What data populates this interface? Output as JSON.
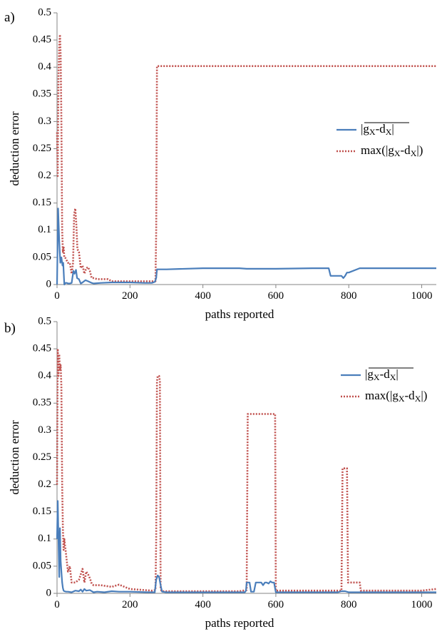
{
  "chart_data": [
    {
      "type": "line",
      "panel_label": "a)",
      "xlabel": "paths reported",
      "ylabel": "deduction error",
      "xlim": [
        0,
        1040
      ],
      "ylim": [
        0,
        0.5
      ],
      "xticks": [
        0,
        200,
        400,
        600,
        800,
        1000
      ],
      "yticks": [
        0,
        0.05,
        0.1,
        0.15,
        0.2,
        0.25,
        0.3,
        0.35,
        0.4,
        0.45,
        0.5
      ],
      "grid": false,
      "legend_placement": "right",
      "series": [
        {
          "name": "|gx-dx| (mean)",
          "color": "#4a7ebb",
          "style": "solid",
          "x": [
            0,
            3,
            6,
            9,
            12,
            15,
            17,
            20,
            23,
            27,
            30,
            35,
            40,
            45,
            48,
            52,
            55,
            60,
            65,
            70,
            78,
            85,
            95,
            100,
            120,
            150,
            200,
            240,
            260,
            268,
            270,
            272,
            274,
            300,
            400,
            500,
            520,
            600,
            700,
            745,
            750,
            752,
            780,
            785,
            790,
            795,
            800,
            830,
            900,
            1040
          ],
          "y": [
            0.0,
            0.14,
            0.08,
            0.04,
            0.05,
            0.035,
            0.04,
            0.0,
            0.003,
            0.003,
            0.002,
            0.002,
            0.003,
            0.025,
            0.02,
            0.027,
            0.012,
            0.01,
            0.002,
            0.004,
            0.008,
            0.006,
            0.003,
            0.002,
            0.003,
            0.004,
            0.004,
            0.003,
            0.003,
            0.005,
            0.008,
            0.012,
            0.028,
            0.028,
            0.03,
            0.03,
            0.029,
            0.029,
            0.03,
            0.03,
            0.016,
            0.016,
            0.016,
            0.012,
            0.016,
            0.022,
            0.022,
            0.03,
            0.03,
            0.03
          ]
        },
        {
          "name": "max(|gx-dx|)",
          "color": "#c0504d",
          "style": "dotted",
          "x": [
            0,
            2,
            4,
            6,
            8,
            10,
            12,
            14,
            16,
            18,
            20,
            22,
            26,
            30,
            35,
            40,
            44,
            47,
            50,
            53,
            56,
            60,
            65,
            70,
            75,
            80,
            85,
            90,
            95,
            100,
            110,
            140,
            150,
            270,
            272,
            274,
            400,
            600,
            800,
            1040
          ],
          "y": [
            0.28,
            0.2,
            0.38,
            0.44,
            0.46,
            0.42,
            0.3,
            0.1,
            0.06,
            0.07,
            0.05,
            0.05,
            0.045,
            0.04,
            0.04,
            0.02,
            0.04,
            0.13,
            0.14,
            0.11,
            0.065,
            0.06,
            0.03,
            0.035,
            0.02,
            0.03,
            0.032,
            0.025,
            0.012,
            0.012,
            0.01,
            0.01,
            0.006,
            0.006,
            0.1,
            0.402,
            0.402,
            0.402,
            0.402,
            0.402
          ]
        }
      ]
    },
    {
      "type": "line",
      "panel_label": "b)",
      "xlabel": "paths reported",
      "ylabel": "deduction error",
      "xlim": [
        0,
        1040
      ],
      "ylim": [
        0,
        0.5
      ],
      "xticks": [
        0,
        200,
        400,
        600,
        800,
        1000
      ],
      "yticks": [
        0,
        0.05,
        0.1,
        0.15,
        0.2,
        0.25,
        0.3,
        0.35,
        0.4,
        0.45,
        0.5
      ],
      "grid": false,
      "legend_placement": "top-right",
      "series": [
        {
          "name": "|gx-dx| (mean)",
          "color": "#4a7ebb",
          "style": "solid",
          "x": [
            0,
            2,
            4,
            6,
            8,
            10,
            12,
            14,
            16,
            18,
            20,
            25,
            30,
            40,
            50,
            60,
            65,
            70,
            75,
            80,
            90,
            100,
            110,
            130,
            150,
            170,
            200,
            250,
            268,
            272,
            276,
            280,
            284,
            288,
            300,
            400,
            500,
            515,
            518,
            520,
            528,
            532,
            540,
            545,
            550,
            560,
            565,
            570,
            575,
            580,
            585,
            590,
            595,
            600,
            700,
            770,
            780,
            790,
            800,
            900,
            1040
          ],
          "y": [
            0.1,
            0.17,
            0.1,
            0.03,
            0.12,
            0.06,
            0.04,
            0.02,
            0.01,
            0.005,
            0.004,
            0.003,
            0.003,
            0.002,
            0.005,
            0.004,
            0.007,
            0.003,
            0.008,
            0.005,
            0.006,
            0.002,
            0.003,
            0.002,
            0.004,
            0.003,
            0.003,
            0.002,
            0.002,
            0.025,
            0.033,
            0.03,
            0.015,
            0.003,
            0.002,
            0.002,
            0.002,
            0.002,
            0.005,
            0.02,
            0.02,
            0.003,
            0.003,
            0.02,
            0.02,
            0.02,
            0.015,
            0.02,
            0.02,
            0.018,
            0.022,
            0.02,
            0.02,
            0.002,
            0.002,
            0.002,
            0.004,
            0.004,
            0.002,
            0.002,
            0.002
          ]
        },
        {
          "name": "max(|gx-dx|)",
          "color": "#c0504d",
          "style": "dotted",
          "x": [
            0,
            2,
            4,
            6,
            8,
            10,
            12,
            14,
            16,
            18,
            20,
            25,
            30,
            35,
            40,
            50,
            60,
            70,
            75,
            80,
            85,
            90,
            95,
            100,
            120,
            150,
            170,
            200,
            260,
            270,
            272,
            274,
            276,
            278,
            280,
            282,
            284,
            286,
            290,
            300,
            400,
            500,
            520,
            523,
            526,
            595,
            598,
            600,
            700,
            780,
            783,
            786,
            795,
            798,
            800,
            830,
            833,
            900,
            1000,
            1040
          ],
          "y": [
            0.2,
            0.45,
            0.4,
            0.44,
            0.41,
            0.42,
            0.38,
            0.2,
            0.12,
            0.08,
            0.1,
            0.07,
            0.04,
            0.05,
            0.02,
            0.02,
            0.025,
            0.045,
            0.02,
            0.04,
            0.035,
            0.028,
            0.018,
            0.015,
            0.015,
            0.012,
            0.016,
            0.008,
            0.005,
            0.006,
            0.1,
            0.39,
            0.4,
            0.4,
            0.4,
            0.39,
            0.01,
            0.005,
            0.004,
            0.004,
            0.004,
            0.004,
            0.006,
            0.33,
            0.33,
            0.33,
            0.33,
            0.005,
            0.005,
            0.005,
            0.23,
            0.23,
            0.23,
            0.02,
            0.02,
            0.02,
            0.005,
            0.005,
            0.005,
            0.008
          ]
        }
      ]
    }
  ]
}
